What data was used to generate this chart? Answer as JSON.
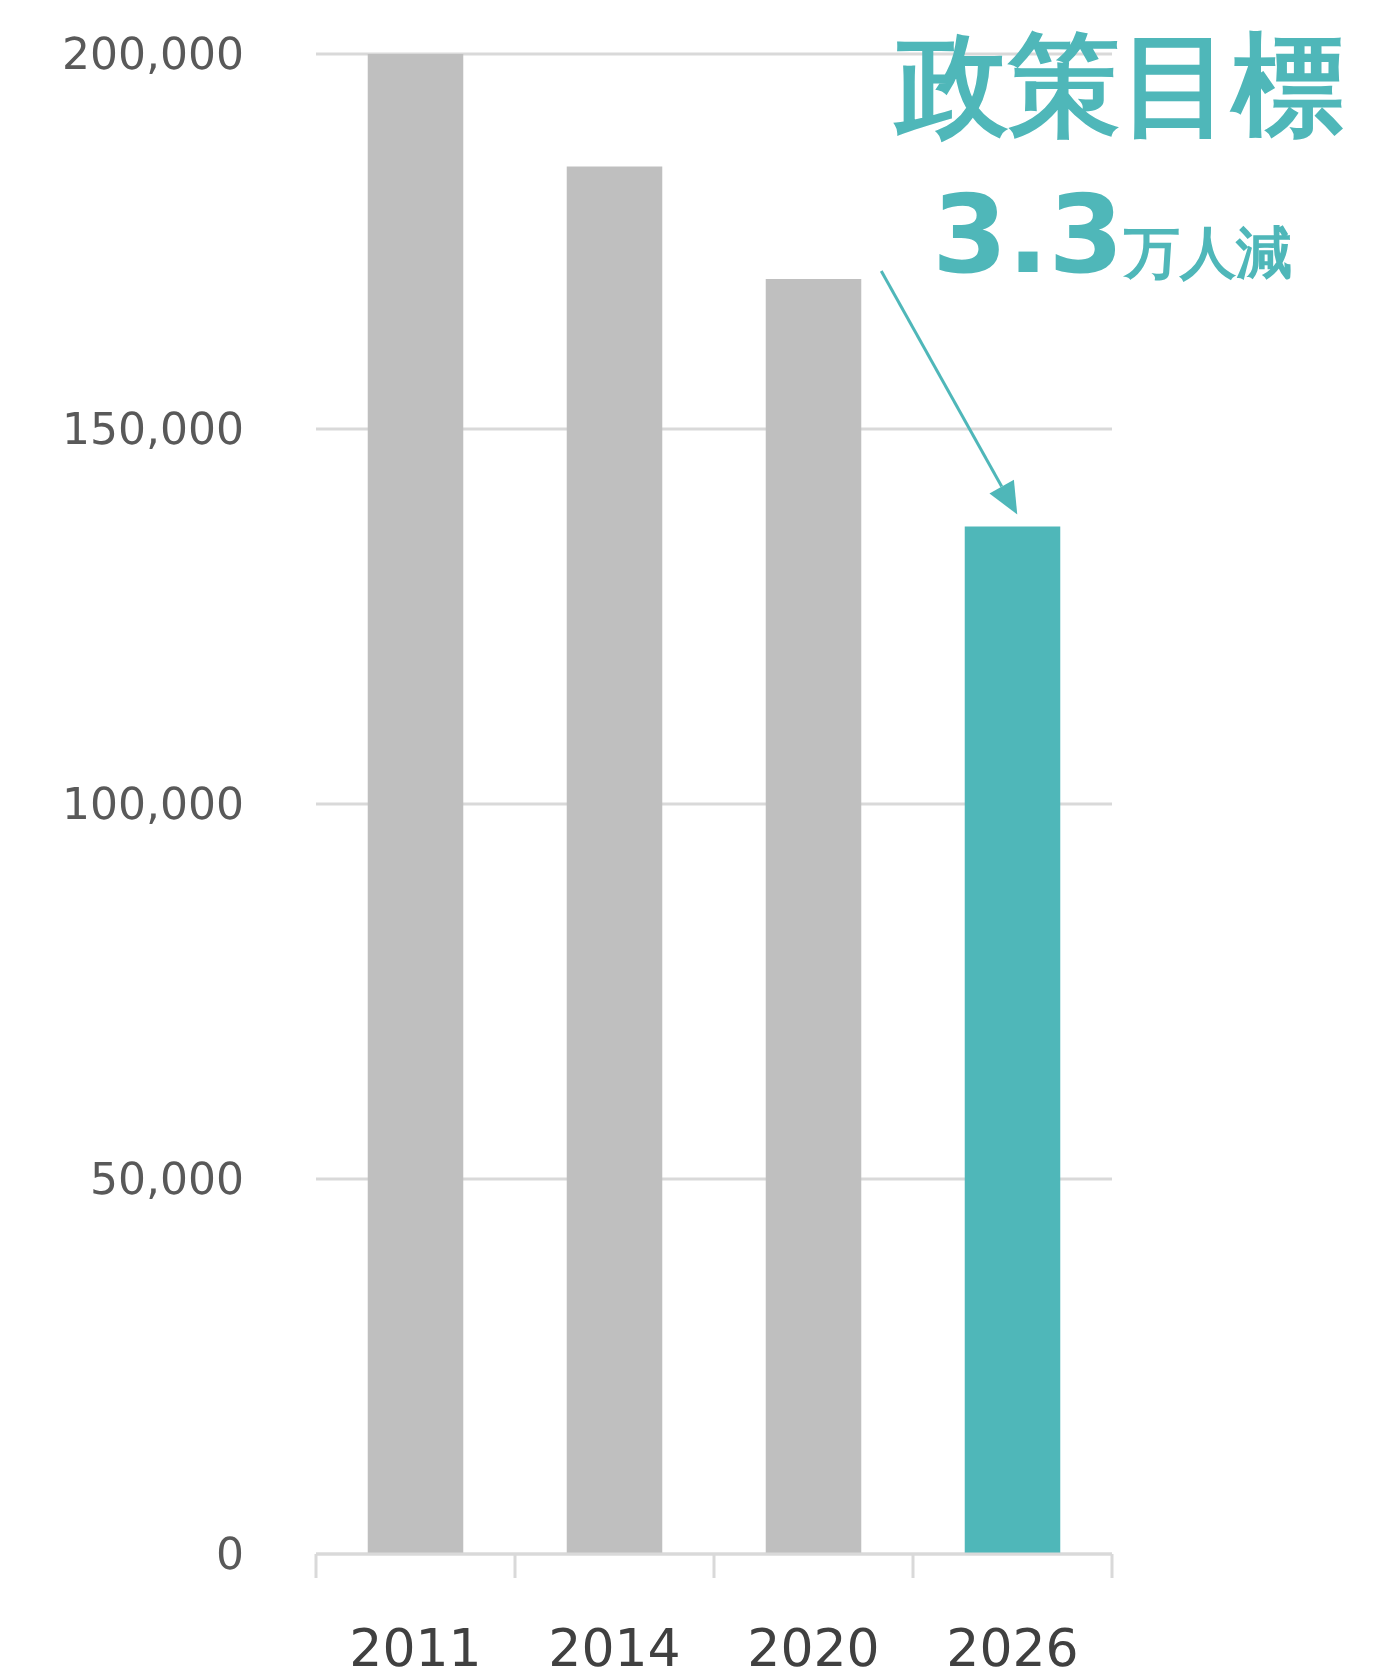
{
  "chart_data": {
    "type": "bar",
    "categories": [
      "2011",
      "2014",
      "2020",
      "2026"
    ],
    "values": [
      200000,
      185000,
      170000,
      137000
    ],
    "colors": [
      "#bfbfbf",
      "#bfbfbf",
      "#bfbfbf",
      "#4fb7b9"
    ],
    "ylim": [
      0,
      200000
    ],
    "yticks": [
      {
        "value": 0,
        "label": "0"
      },
      {
        "value": 50000,
        "label": "50,000"
      },
      {
        "value": 100000,
        "label": "100,000"
      },
      {
        "value": 150000,
        "label": "150,000"
      },
      {
        "value": 200000,
        "label": "200,000"
      }
    ],
    "grid": "y",
    "annotations": [
      "政策目標",
      "3.3万人減"
    ]
  }
}
